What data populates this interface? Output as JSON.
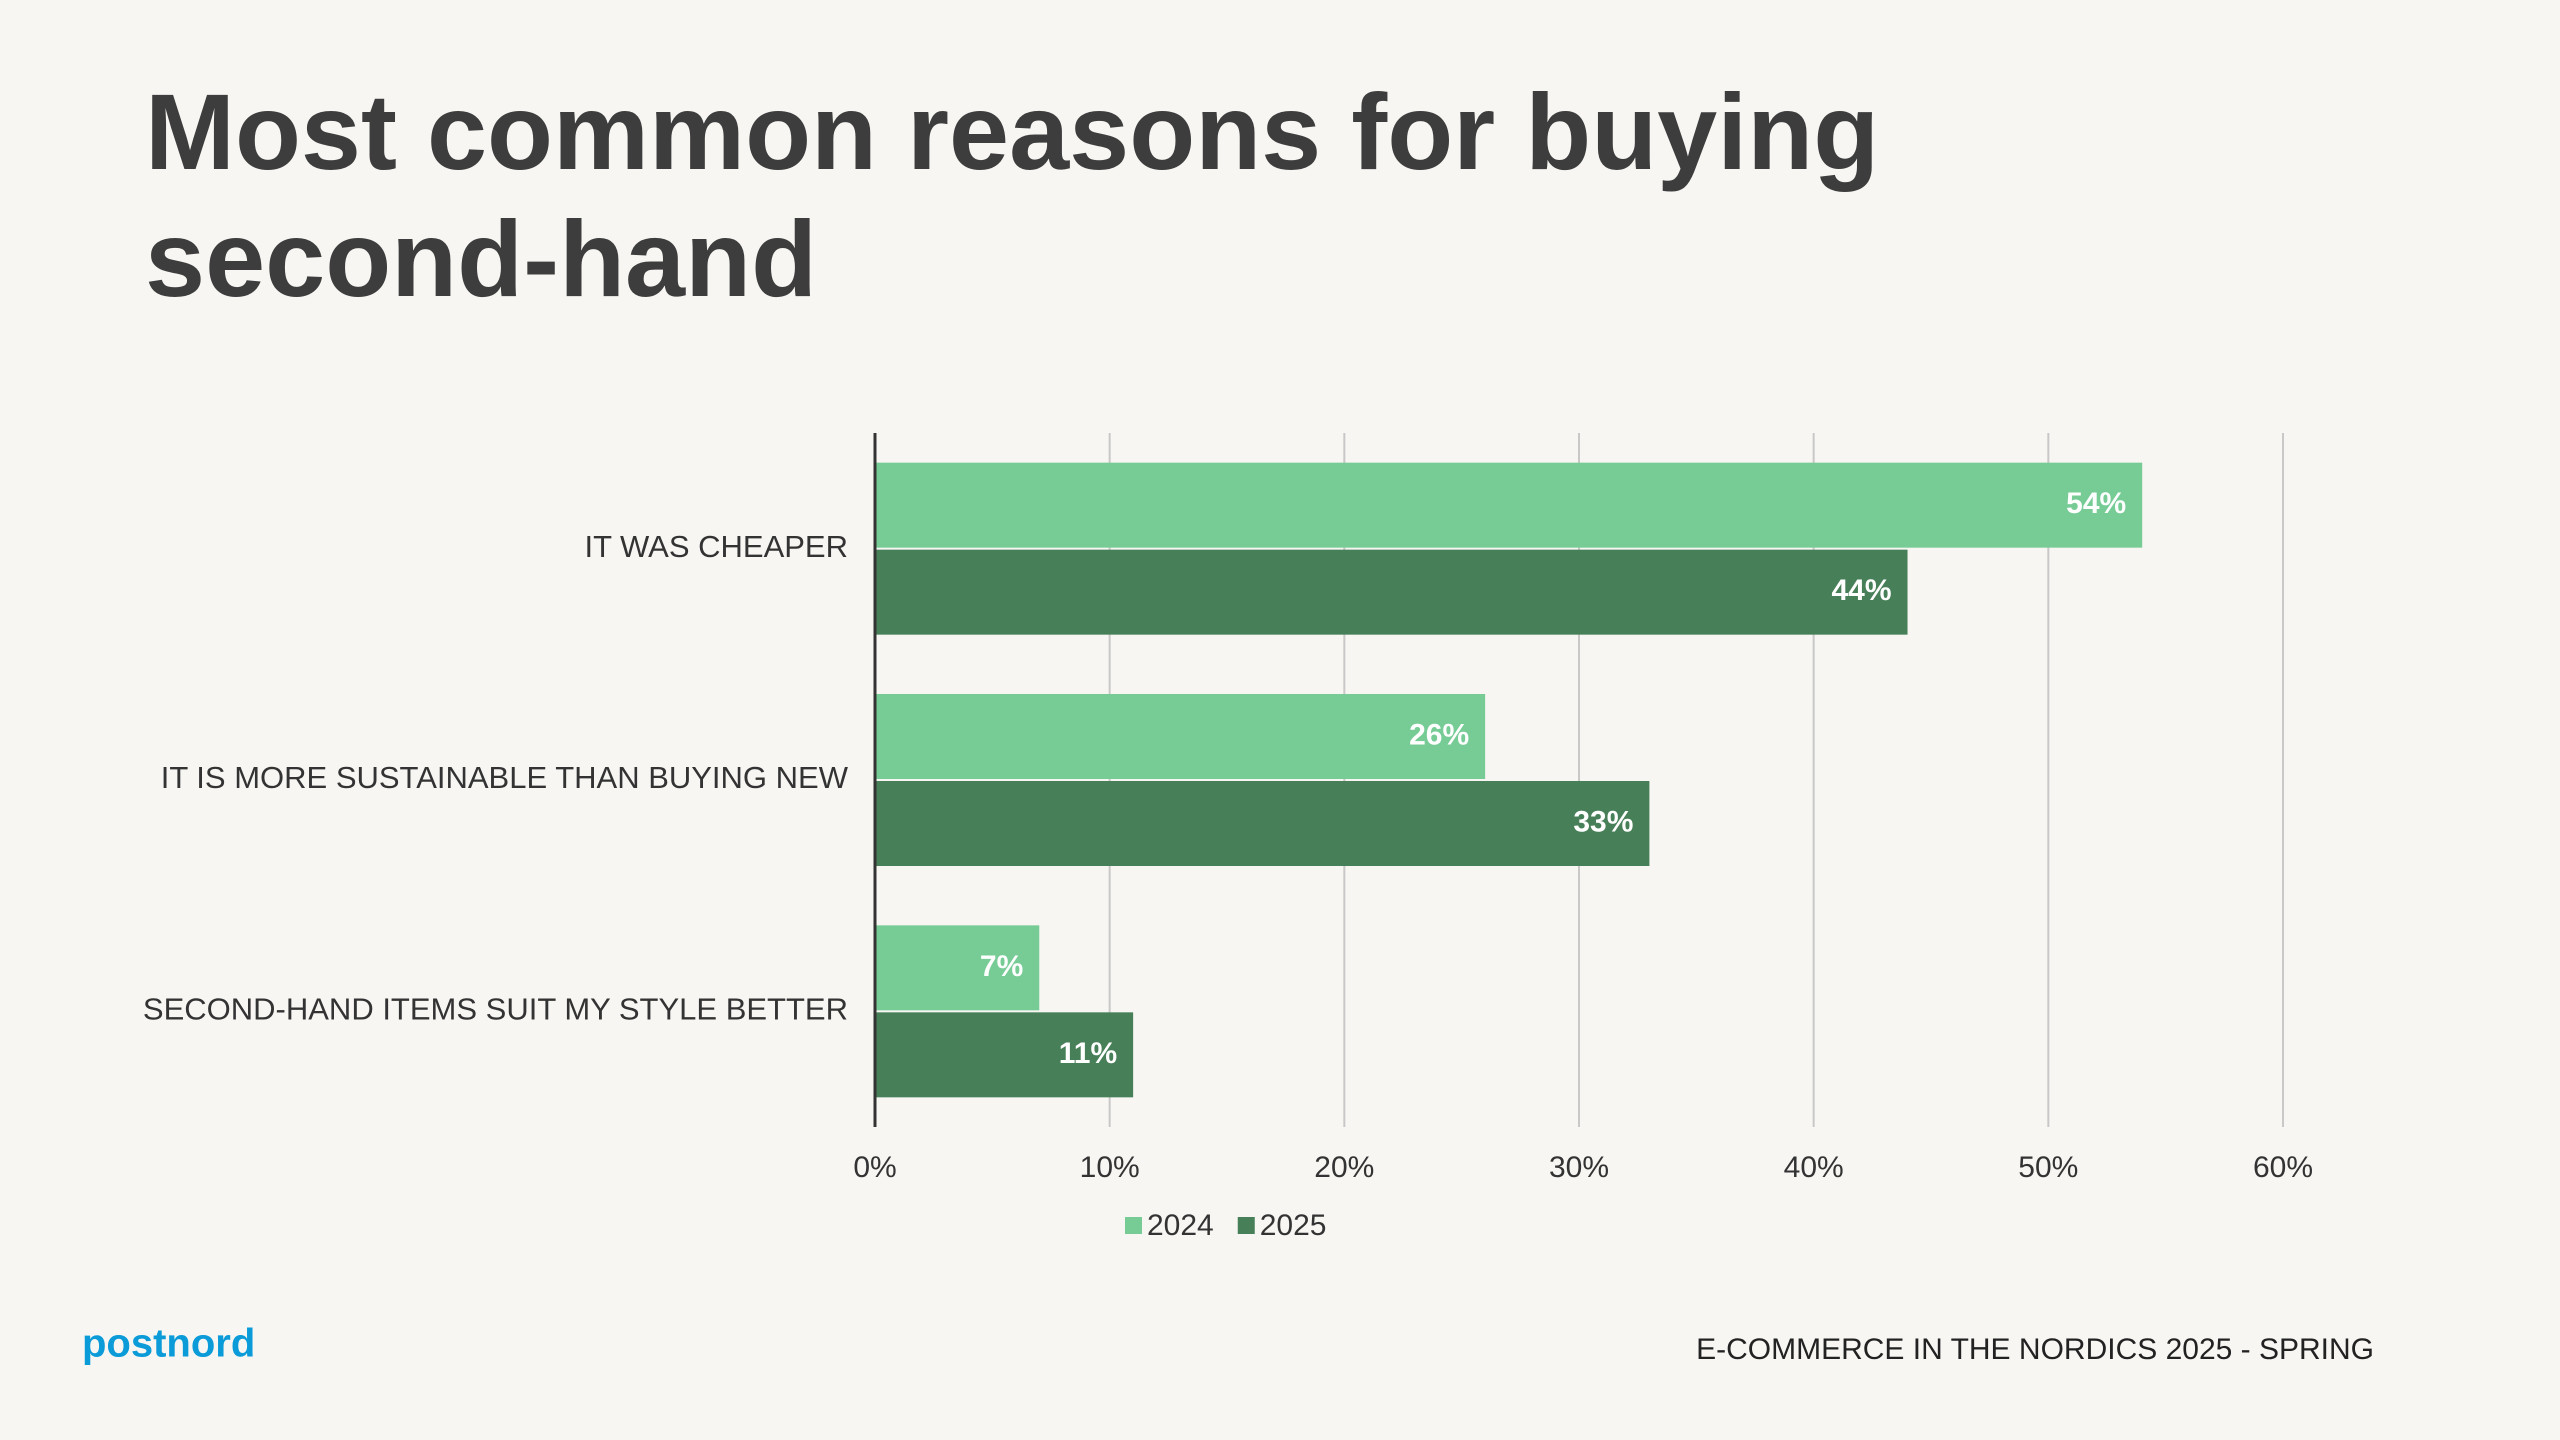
{
  "chart_data": {
    "type": "bar",
    "orientation": "horizontal",
    "title": "Most common reasons for buying second-hand",
    "categories": [
      "IT WAS CHEAPER",
      "IT IS MORE SUSTAINABLE THAN BUYING NEW",
      "SECOND-HAND ITEMS SUIT MY STYLE BETTER"
    ],
    "series": [
      {
        "name": "2024",
        "color": "#77cc96",
        "values": [
          54,
          26,
          7
        ],
        "value_labels": [
          "54%",
          "26%",
          "7%"
        ]
      },
      {
        "name": "2025",
        "color": "#478058",
        "values": [
          44,
          33,
          11
        ],
        "value_labels": [
          "44%",
          "33%",
          "11%"
        ]
      }
    ],
    "xlim": [
      0,
      60
    ],
    "xticks": [
      {
        "value": 0,
        "label": "0%"
      },
      {
        "value": 10,
        "label": "10%"
      },
      {
        "value": 20,
        "label": "20%"
      },
      {
        "value": 30,
        "label": "30%"
      },
      {
        "value": 40,
        "label": "40%"
      },
      {
        "value": 50,
        "label": "50%"
      },
      {
        "value": 60,
        "label": "60%"
      }
    ],
    "grid": true,
    "legend": "bottom"
  },
  "brand": "postnord",
  "footer": "E-COMMERCE IN THE NORDICS 2025 - SPRING"
}
